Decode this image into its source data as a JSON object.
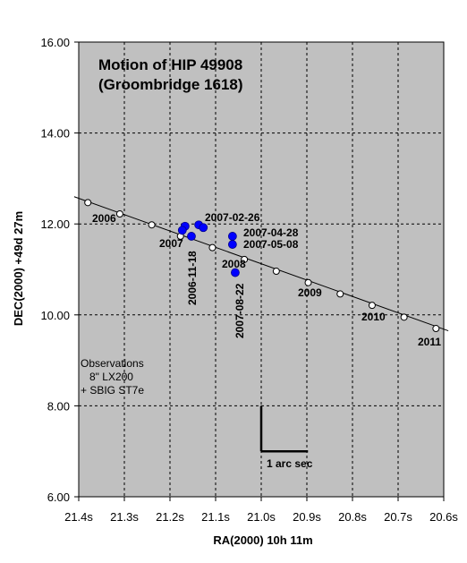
{
  "chart_data": {
    "type": "scatter",
    "title_lines": [
      "Motion of HIP 49908",
      "(Groombridge 1618)"
    ],
    "xlabel": "RA(2000) 10h 11m",
    "ylabel": "DEC(2000) +49d 27m",
    "xlim": [
      21.4,
      20.6
    ],
    "ylim": [
      6.0,
      16.0
    ],
    "x_ticks": [
      21.4,
      21.3,
      21.2,
      21.1,
      21.0,
      20.9,
      20.8,
      20.7,
      20.6
    ],
    "x_tick_labels": [
      "21.4s",
      "21.3s",
      "21.2s",
      "21.1s",
      "21.0s",
      "20.9s",
      "20.8s",
      "20.7s",
      "20.6s"
    ],
    "y_ticks": [
      6.0,
      8.0,
      10.0,
      12.0,
      14.0,
      16.0
    ],
    "y_tick_labels": [
      "6.00",
      "8.00",
      "10.00",
      "12.00",
      "14.00",
      "16.00"
    ],
    "grid": true,
    "plot_background": "#c0c0c0",
    "series": [
      {
        "role": "predicted-path",
        "color": "#000000",
        "line": [
          [
            21.41,
            12.6
          ],
          [
            20.59,
            9.65
          ]
        ],
        "points": [
          [
            21.38,
            12.47
          ],
          [
            21.31,
            12.22
          ],
          [
            21.24,
            11.98
          ],
          [
            21.177,
            11.73
          ],
          [
            21.107,
            11.48
          ],
          [
            21.037,
            11.22
          ],
          [
            20.967,
            10.96
          ],
          [
            20.897,
            10.71
          ],
          [
            20.827,
            10.46
          ],
          [
            20.757,
            10.21
          ],
          [
            20.687,
            9.95
          ],
          [
            20.617,
            9.7
          ]
        ]
      },
      {
        "role": "observations",
        "color": "#0000ff",
        "points": [
          [
            21.167,
            11.95
          ],
          [
            21.173,
            11.86
          ],
          [
            21.153,
            11.73
          ],
          [
            21.137,
            11.98
          ],
          [
            21.127,
            11.92
          ],
          [
            21.063,
            11.73
          ],
          [
            21.063,
            11.55
          ],
          [
            21.057,
            10.93
          ]
        ]
      }
    ],
    "year_labels": [
      "2006",
      "2007",
      "2008",
      "2009",
      "2010",
      "2011"
    ],
    "date_labels": [
      "2007-02-26",
      "2007-04-28",
      "2007-05-08",
      "2006-11-18",
      "2007-08-22"
    ],
    "notes": [
      "Observations",
      "8\" LX200",
      "+ SBIG ST7e"
    ],
    "scale_bar_label": "1 arc sec"
  }
}
